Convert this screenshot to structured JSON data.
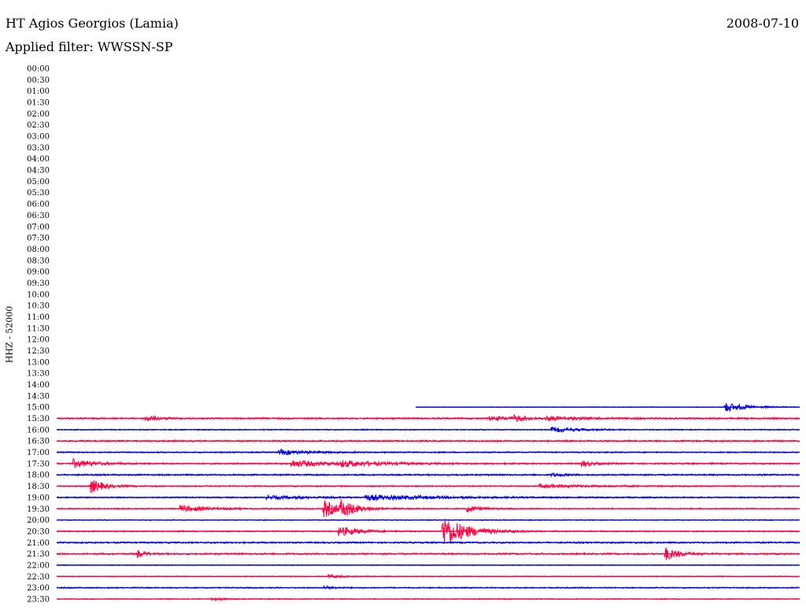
{
  "header": {
    "station": "HT Agios Georgios (Lamia)",
    "date": "2008-07-10",
    "filter": "Applied filter: WWSSN-SP"
  },
  "colors": {
    "even_row": "#0000ee",
    "odd_row": "#ff0040"
  },
  "chart_data": {
    "type": "line",
    "title": "HT Agios Georgios (Lamia)",
    "channel_label": "HHZ - 52000",
    "row_labels": [
      "00:00",
      "00:30",
      "01:00",
      "01:30",
      "02:00",
      "02:30",
      "03:00",
      "03:30",
      "04:00",
      "04:30",
      "05:00",
      "05:30",
      "06:00",
      "06:30",
      "07:00",
      "07:30",
      "08:00",
      "08:30",
      "09:00",
      "09:30",
      "10:00",
      "10:30",
      "11:00",
      "11:30",
      "12:00",
      "12:30",
      "13:00",
      "13:30",
      "14:00",
      "14:30",
      "15:00",
      "15:30",
      "16:00",
      "16:30",
      "17:00",
      "17:30",
      "18:00",
      "18:30",
      "19:00",
      "19:30",
      "20:00",
      "20:30",
      "21:00",
      "21:30",
      "22:00",
      "22:30",
      "23:00",
      "23:30"
    ],
    "row_span_minutes": 30,
    "traces": [
      {
        "row": "15:00",
        "start_min": 14.5,
        "noise": 0.5,
        "events": [
          {
            "t": 27.0,
            "amp": 6,
            "dur": 0.8
          }
        ]
      },
      {
        "row": "15:30",
        "noise": 1.0,
        "events": [
          {
            "t": 3.6,
            "amp": 4,
            "dur": 0.4
          },
          {
            "t": 17.5,
            "amp": 2,
            "dur": 1.5
          },
          {
            "t": 18.5,
            "amp": 3,
            "dur": 0.4
          },
          {
            "t": 19.8,
            "amp": 2,
            "dur": 1.5
          }
        ]
      },
      {
        "row": "16:00",
        "noise": 0.7,
        "events": [
          {
            "t": 20.0,
            "amp": 3,
            "dur": 1.0
          }
        ]
      },
      {
        "row": "16:30",
        "noise": 1.0,
        "events": []
      },
      {
        "row": "17:00",
        "noise": 0.8,
        "events": [
          {
            "t": 9.0,
            "amp": 3,
            "dur": 1.2
          }
        ]
      },
      {
        "row": "17:30",
        "noise": 1.0,
        "events": [
          {
            "t": 0.7,
            "amp": 5,
            "dur": 0.8
          },
          {
            "t": 9.5,
            "amp": 4,
            "dur": 1.5
          },
          {
            "t": 11.5,
            "amp": 3,
            "dur": 1.5
          },
          {
            "t": 21.2,
            "amp": 4,
            "dur": 0.4
          }
        ]
      },
      {
        "row": "18:00",
        "noise": 1.0,
        "events": [
          {
            "t": 20.0,
            "amp": 2,
            "dur": 0.5
          }
        ]
      },
      {
        "row": "18:30",
        "noise": 0.8,
        "events": [
          {
            "t": 1.4,
            "amp": 9,
            "dur": 0.5
          },
          {
            "t": 19.5,
            "amp": 2,
            "dur": 2.0
          }
        ]
      },
      {
        "row": "19:00",
        "noise": 0.8,
        "events": [
          {
            "t": 8.5,
            "amp": 2,
            "dur": 2.0
          },
          {
            "t": 12.5,
            "amp": 3,
            "dur": 3.0
          }
        ]
      },
      {
        "row": "19:30",
        "noise": 0.8,
        "events": [
          {
            "t": 5.0,
            "amp": 4,
            "dur": 1.0
          },
          {
            "t": 10.8,
            "amp": 11,
            "dur": 0.6
          },
          {
            "t": 11.5,
            "amp": 9,
            "dur": 0.6
          },
          {
            "t": 16.6,
            "amp": 4,
            "dur": 0.5
          }
        ]
      },
      {
        "row": "20:00",
        "noise": 0.6,
        "events": []
      },
      {
        "row": "20:30",
        "noise": 0.8,
        "events": [
          {
            "t": 11.4,
            "amp": 6,
            "dur": 0.8
          },
          {
            "t": 15.6,
            "amp": 20,
            "dur": 0.9
          }
        ]
      },
      {
        "row": "21:00",
        "noise": 1.0,
        "events": []
      },
      {
        "row": "21:30",
        "noise": 1.0,
        "events": [
          {
            "t": 3.3,
            "amp": 4,
            "dur": 0.3
          },
          {
            "t": 24.6,
            "amp": 8,
            "dur": 0.5
          }
        ]
      },
      {
        "row": "22:00",
        "noise": 0.5,
        "events": []
      },
      {
        "row": "22:30",
        "noise": 0.6,
        "events": [
          {
            "t": 11.0,
            "amp": 2,
            "dur": 0.5
          }
        ]
      },
      {
        "row": "23:00",
        "noise": 0.8,
        "events": [
          {
            "t": 10.8,
            "amp": 2,
            "dur": 0.4
          }
        ]
      },
      {
        "row": "23:30",
        "noise": 0.6,
        "events": [
          {
            "t": 6.3,
            "amp": 2,
            "dur": 0.4
          }
        ]
      }
    ]
  }
}
